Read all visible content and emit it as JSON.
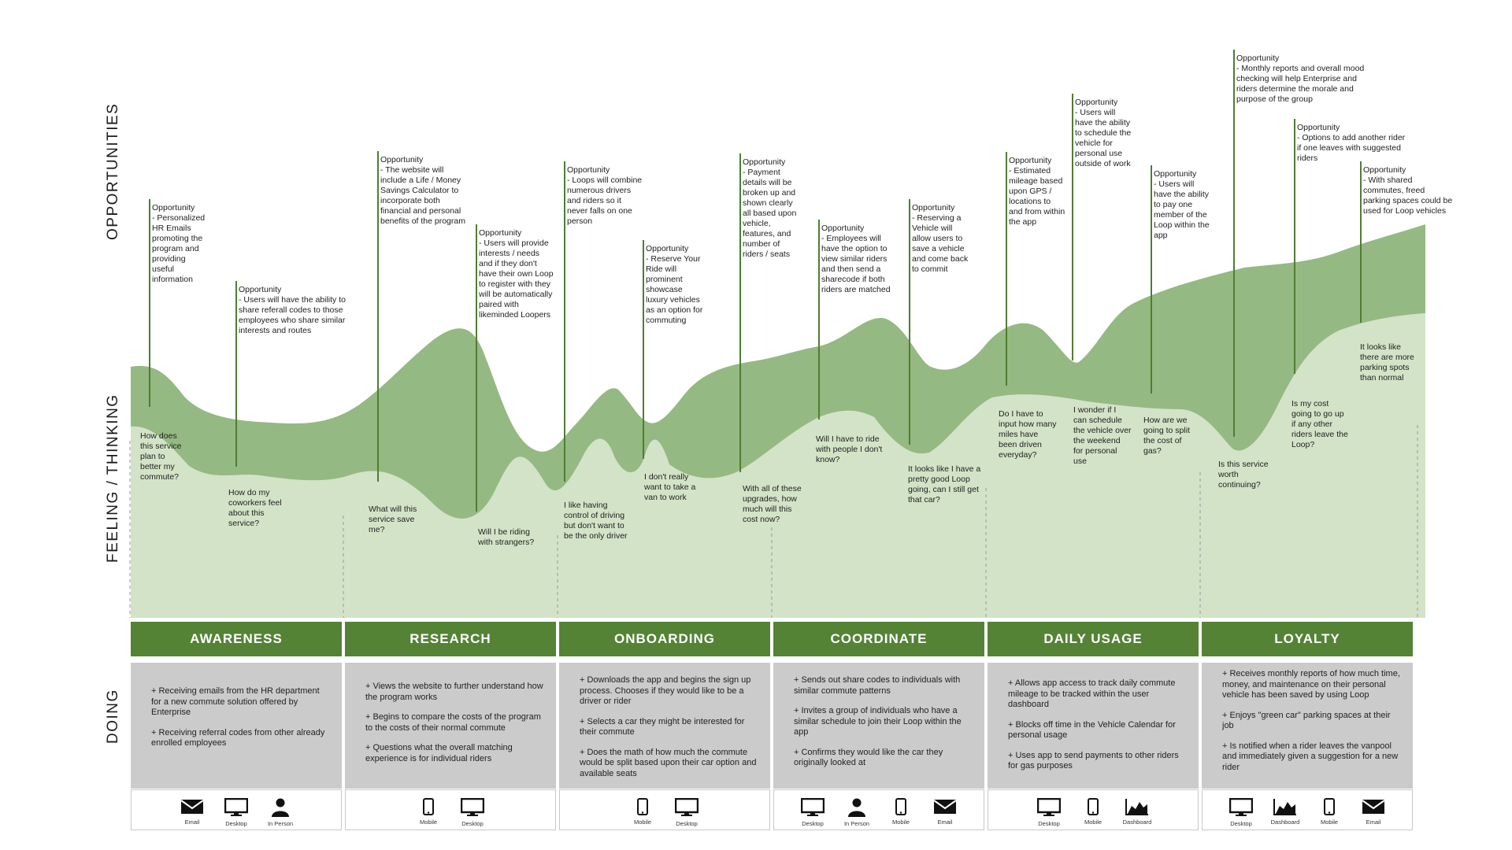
{
  "row_labels": {
    "opportunities": "OPPORTUNITIES",
    "feeling": "FEELING / THINKING",
    "doing": "DOING"
  },
  "colors": {
    "header_green": "#548336",
    "dark_band": "#95b982",
    "light_band": "#d3e3c7",
    "line_green": "#4f7d34",
    "doing_gray": "#cbcbcb"
  },
  "opportunities": [
    "Opportunity\n- Personalized\nHR Emails\npromoting the\nprogram and\nproviding\nuseful\ninformation",
    "Opportunity\n- Users will have the ability to\nshare referall codes to those\nemployees who share similar\ninterests and routes",
    "Opportunity\n- The website will\ninclude a Life / Money\nSavings Calculator to\nincorporate both\nfinancial and personal\nbenefits of the program",
    "Opportunity\n- Users will provide\ninterests / needs\nand if they don't\nhave their own Loop\nto register with they\nwill be automatically\npaired with\nlikeminded Loopers",
    "Opportunity\n- Loops will combine\nnumerous drivers\nand riders so it\nnever falls on one\nperson",
    "Opportunity\n- Reserve Your\nRide will\nprominent\nshowcase\nluxury vehicles\nas an option for\ncommuting",
    "Opportunity\n- Payment\ndetails will be\nbroken up and\nshown clearly\nall based upon\nvehicle,\nfeatures, and\nnumber of\nriders / seats",
    "Opportunity\n- Employees will\nhave the option to\nview similar riders\nand then send a\nsharecode if both\nriders are matched",
    "Opportunity\n- Reserving a\nVehicle will\nallow users to\nsave a vehicle\nand come back\nto commit",
    "Opportunity\n- Estimated\nmileage based\nupon GPS /\nlocations to\nand from within\nthe app",
    "Opportunity\n- Users will\nhave the ability\nto schedule the\nvehicle for\npersonal use\noutside of work",
    "Opportunity\n- Users will\nhave the ability\nto pay one\nmember of the\nLoop within the\napp",
    "Opportunity\n- Monthly reports and overall mood\nchecking will help Enterprise and\nriders determine the morale and\npurpose of the group",
    "Opportunity\n- Options to add another rider\nif one leaves with suggested\nriders",
    "Opportunity\n- With shared\ncommutes, freed\nparking spaces could be\nused for Loop vehicles"
  ],
  "thoughts": [
    "How does\nthis service\nplan to\nbetter my\ncommute?",
    "How do my\ncoworkers feel\nabout this\nservice?",
    "What will this\nservice save\nme?",
    "Will I be riding\nwith strangers?",
    "I like having\ncontrol of driving\nbut don't want to\nbe the only driver",
    "I don't really\nwant to take a\nvan to work",
    "With all of these\nupgrades, how\nmuch will this\ncost now?",
    "Will I have to ride\nwith people I don't\nknow?",
    "It looks like I have a\npretty good Loop\ngoing, can I still get\nthat car?",
    "Do I have to\ninput how many\nmiles have\nbeen driven\neveryday?",
    "I wonder if I\ncan schedule\nthe vehicle over\nthe weekend\nfor personal\nuse",
    "How are we\ngoing to split\nthe cost of\ngas?",
    "Is this service\nworth\ncontinuing?",
    "Is my cost\ngoing to go up\nif any other\nriders leave the\nLoop?",
    "It looks like\nthere are more\nparking spots\nthan normal"
  ],
  "stages": [
    {
      "name": "AWARENESS",
      "doing": [
        "+ Receiving emails from the HR department for a new commute solution offered by Enterprise",
        "+ Receiving referral codes from other already enrolled employees"
      ],
      "channels": [
        {
          "icon": "email-icon",
          "label": "Email"
        },
        {
          "icon": "desktop-icon",
          "label": "Desktop"
        },
        {
          "icon": "person-icon",
          "label": "In Person"
        }
      ]
    },
    {
      "name": "RESEARCH",
      "doing": [
        "+ Views the website to further understand how the program works",
        "+ Begins to compare the costs of the program to the costs of their normal commute",
        "+ Questions what the overall matching experience is for individual riders"
      ],
      "channels": [
        {
          "icon": "mobile-icon",
          "label": "Mobile"
        },
        {
          "icon": "desktop-icon",
          "label": "Desktop"
        }
      ]
    },
    {
      "name": "ONBOARDING",
      "doing": [
        "+ Downloads the app and begins the sign up process. Chooses if they would like to be a driver or rider",
        "+ Selects a car they might be interested for their commute",
        "+ Does the math of how much the commute would be split based upon their car option and available seats"
      ],
      "channels": [
        {
          "icon": "mobile-icon",
          "label": "Mobile"
        },
        {
          "icon": "desktop-icon",
          "label": "Desktop"
        }
      ]
    },
    {
      "name": "COORDINATE",
      "doing": [
        "+ Sends out share codes to individuals with similar commute patterns",
        "+ Invites a group of individuals who have a similar schedule to join their Loop within the app",
        "+ Confirms they would like the car they originally looked at"
      ],
      "channels": [
        {
          "icon": "desktop-icon",
          "label": "Desktop"
        },
        {
          "icon": "person-icon",
          "label": "In Person"
        },
        {
          "icon": "mobile-icon",
          "label": "Mobile"
        },
        {
          "icon": "email-icon",
          "label": "Email"
        }
      ]
    },
    {
      "name": "DAILY USAGE",
      "doing": [
        "+ Allows app access to track daily commute mileage to be tracked within the user dashboard",
        "+ Blocks off time in the Vehicle Calendar for personal usage",
        "+ Uses app to send payments to other riders for gas purposes"
      ],
      "channels": [
        {
          "icon": "desktop-icon",
          "label": "Desktop"
        },
        {
          "icon": "mobile-icon",
          "label": "Mobile"
        },
        {
          "icon": "dashboard-icon",
          "label": "Dashboard"
        }
      ]
    },
    {
      "name": "LOYALTY",
      "doing": [
        "+ Receives monthly reports of how much time, money, and maintenance on their personal vehicle has been saved by using Loop",
        "+ Enjoys \"green car\" parking spaces at their job",
        "+ Is notified when a rider leaves the vanpool and immediately given a suggestion for a new rider"
      ],
      "channels": [
        {
          "icon": "desktop-icon",
          "label": "Desktop"
        },
        {
          "icon": "dashboard-icon",
          "label": "Dashboard"
        },
        {
          "icon": "mobile-icon",
          "label": "Mobile"
        },
        {
          "icon": "email-icon",
          "label": "Email"
        }
      ]
    }
  ]
}
